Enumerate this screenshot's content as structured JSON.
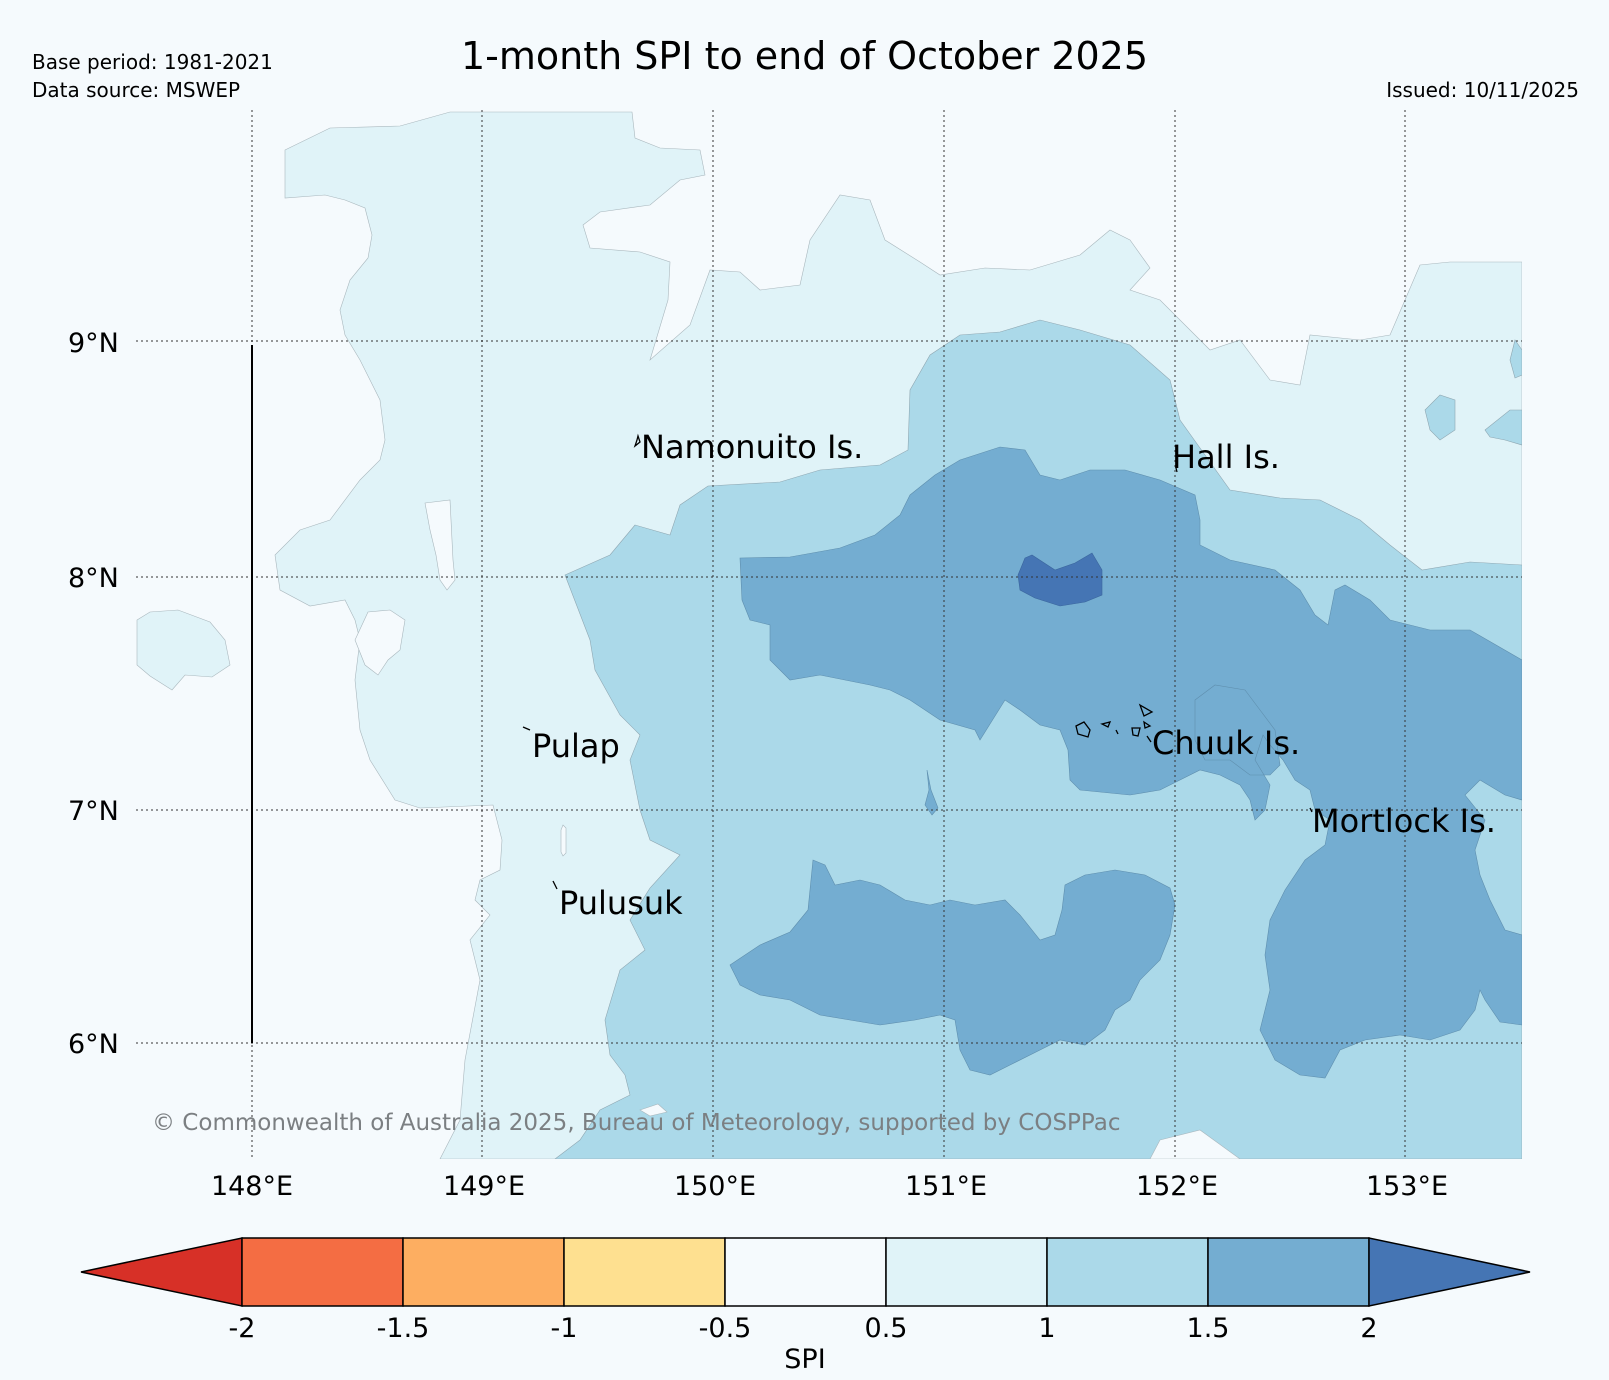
{
  "header": {
    "title": "1-month SPI to end of October 2025",
    "base_period": "Base period: 1981-2021",
    "data_source": "Data source: MSWEP",
    "issued": "Issued: 10/11/2025"
  },
  "map": {
    "lat_labels": [
      "9°N",
      "8°N",
      "7°N",
      "6°N"
    ],
    "lon_labels": [
      "148°E",
      "149°E",
      "150°E",
      "151°E",
      "152°E",
      "153°E"
    ],
    "places": {
      "namonuito": "Namonuito Is.",
      "hall": "Hall Is.",
      "pulap": "Pulap",
      "chuuk": "Chuuk Is.",
      "mortlock": "Mortlock Is.",
      "pulusuk": "Pulusuk"
    },
    "copyright": "© Commonwealth of Australia 2025, Bureau of Meteorology, supported by COSPPac",
    "colors": {
      "background": "#f5fafd",
      "spi_0_5_to_1": "#e0f3f8",
      "spi_1_to_1_5": "#abd9e9",
      "spi_1_5_to_2": "#74add1",
      "spi_above_2": "#4575b4"
    }
  },
  "colorbar": {
    "label": "SPI",
    "ticks": [
      "-2",
      "-1.5",
      "-1",
      "-0.5",
      "0.5",
      "1",
      "1.5",
      "2"
    ],
    "colors": [
      "#d73027",
      "#f46d43",
      "#fdae61",
      "#fee090",
      "#f5fafd",
      "#e0f3f8",
      "#abd9e9",
      "#74add1",
      "#4575b4"
    ]
  }
}
